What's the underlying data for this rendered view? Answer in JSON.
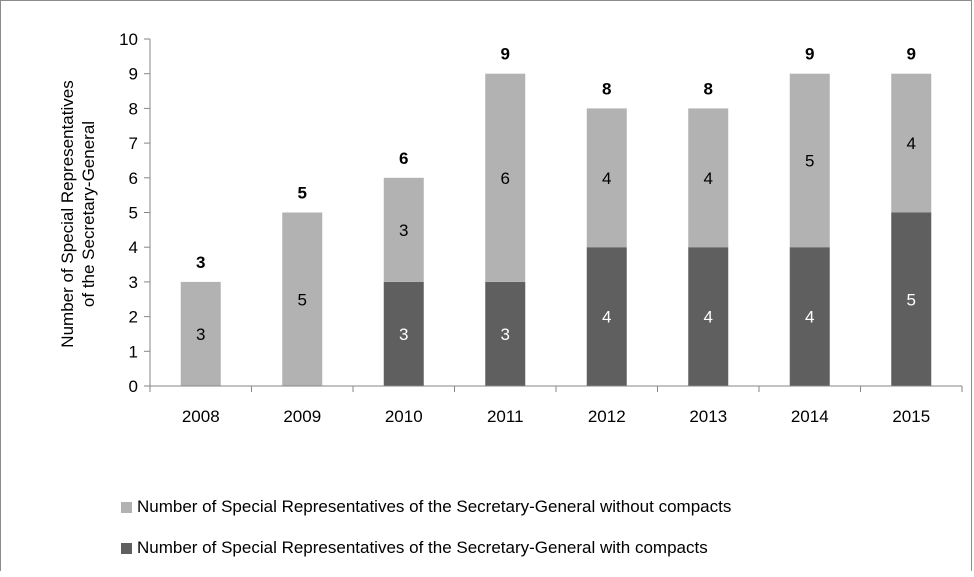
{
  "chart_data": {
    "type": "bar",
    "stacked": true,
    "title": "",
    "xlabel": "",
    "ylabel": "Number of Special Representatives of the Secretary-General",
    "ylabel_lines": [
      "Number of Special Representatives",
      "of the Secretary-General"
    ],
    "ylim": [
      0,
      10
    ],
    "yticks": [
      0,
      1,
      2,
      3,
      4,
      5,
      6,
      7,
      8,
      9,
      10
    ],
    "grid": false,
    "legend_position": "bottom",
    "categories": [
      "2008",
      "2009",
      "2010",
      "2011",
      "2012",
      "2013",
      "2014",
      "2015"
    ],
    "series": [
      {
        "name": "Number of Special Representatives of the Secretary-General with compacts",
        "values": [
          0,
          0,
          3,
          3,
          4,
          4,
          4,
          5
        ],
        "color": "#5f5f5f",
        "label_color": "#ffffff"
      },
      {
        "name": "Number of Special Representatives of the Secretary-General without compacts",
        "values": [
          3,
          5,
          3,
          6,
          4,
          4,
          5,
          4
        ],
        "color": "#b2b2b2",
        "label_color": "#000000"
      }
    ],
    "totals": [
      3,
      5,
      6,
      9,
      8,
      8,
      9,
      9
    ],
    "legend_order": [
      1,
      0
    ]
  }
}
